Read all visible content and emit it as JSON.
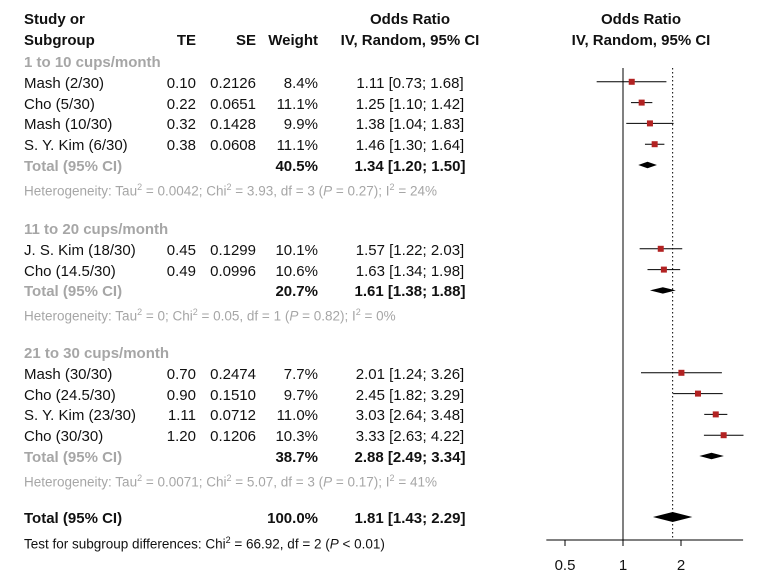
{
  "chart_data": {
    "type": "forest",
    "header": {
      "study_line1": "Study or",
      "study_line2": "Subgroup",
      "te": "TE",
      "se": "SE",
      "weight": "Weight",
      "or_title": "Odds Ratio",
      "or_method": "IV, Random, 95% CI",
      "plot_title": "Odds Ratio",
      "plot_method": "IV, Random, 95% CI"
    },
    "x_axis": {
      "scale": "log",
      "ticks": [
        0.5,
        1,
        2
      ],
      "tick_labels": [
        "0.5",
        "1",
        "2"
      ],
      "range": [
        0.4,
        4.2
      ],
      "reference": 1,
      "dotted_reference": 1.81
    },
    "subgroups": [
      {
        "name": "1 to 10 cups/month",
        "studies": [
          {
            "study": "Mash (2/30)",
            "te": "0.10",
            "se": "0.2126",
            "weight": "8.4%",
            "ci_text": "1.11 [0.73; 1.68]",
            "or": 1.11,
            "lo": 0.73,
            "hi": 1.68
          },
          {
            "study": "Cho (5/30)",
            "te": "0.22",
            "se": "0.0651",
            "weight": "11.1%",
            "ci_text": "1.25 [1.10; 1.42]",
            "or": 1.25,
            "lo": 1.1,
            "hi": 1.42
          },
          {
            "study": "Mash (10/30)",
            "te": "0.32",
            "se": "0.1428",
            "weight": "9.9%",
            "ci_text": "1.38 [1.04; 1.83]",
            "or": 1.38,
            "lo": 1.04,
            "hi": 1.83
          },
          {
            "study": "S. Y. Kim (6/30)",
            "te": "0.38",
            "se": "0.0608",
            "weight": "11.1%",
            "ci_text": "1.46 [1.30; 1.64]",
            "or": 1.46,
            "lo": 1.3,
            "hi": 1.64
          }
        ],
        "total": {
          "label": "Total (95% CI)",
          "weight": "40.5%",
          "ci_text": "1.34 [1.20; 1.50]",
          "or": 1.34,
          "lo": 1.2,
          "hi": 1.5
        },
        "het": {
          "tau2": "0.0042",
          "chi2": "3.93",
          "df": "3",
          "p": "0.27",
          "i2": "24%"
        }
      },
      {
        "name": "11 to 20 cups/month",
        "studies": [
          {
            "study": "J. S. Kim (18/30)",
            "te": "0.45",
            "se": "0.1299",
            "weight": "10.1%",
            "ci_text": "1.57 [1.22; 2.03]",
            "or": 1.57,
            "lo": 1.22,
            "hi": 2.03
          },
          {
            "study": "Cho (14.5/30)",
            "te": "0.49",
            "se": "0.0996",
            "weight": "10.6%",
            "ci_text": "1.63 [1.34; 1.98]",
            "or": 1.63,
            "lo": 1.34,
            "hi": 1.98
          }
        ],
        "total": {
          "label": "Total (95% CI)",
          "weight": "20.7%",
          "ci_text": "1.61 [1.38; 1.88]",
          "or": 1.61,
          "lo": 1.38,
          "hi": 1.88
        },
        "het": {
          "tau2": "0",
          "chi2": "0.05",
          "df": "1",
          "p": "0.82",
          "i2": "0%"
        }
      },
      {
        "name": "21 to 30 cups/month",
        "studies": [
          {
            "study": "Mash (30/30)",
            "te": "0.70",
            "se": "0.2474",
            "weight": "7.7%",
            "ci_text": "2.01 [1.24; 3.26]",
            "or": 2.01,
            "lo": 1.24,
            "hi": 3.26
          },
          {
            "study": "Cho (24.5/30)",
            "te": "0.90",
            "se": "0.1510",
            "weight": "9.7%",
            "ci_text": "2.45 [1.82; 3.29]",
            "or": 2.45,
            "lo": 1.82,
            "hi": 3.29
          },
          {
            "study": "S. Y. Kim (23/30)",
            "te": "1.11",
            "se": "0.0712",
            "weight": "11.0%",
            "ci_text": "3.03 [2.64; 3.48]",
            "or": 3.03,
            "lo": 2.64,
            "hi": 3.48
          },
          {
            "study": "Cho (30/30)",
            "te": "1.20",
            "se": "0.1206",
            "weight": "10.3%",
            "ci_text": "3.33 [2.63; 4.22]",
            "or": 3.33,
            "lo": 2.63,
            "hi": 4.22
          }
        ],
        "total": {
          "label": "Total (95% CI)",
          "weight": "38.7%",
          "ci_text": "2.88 [2.49; 3.34]",
          "or": 2.88,
          "lo": 2.49,
          "hi": 3.34
        },
        "het": {
          "tau2": "0.0071",
          "chi2": "5.07",
          "df": "3",
          "p": "0.17",
          "i2": "41%"
        }
      }
    ],
    "overall": {
      "label": "Total (95% CI)",
      "weight": "100.0%",
      "ci_text": "1.81 [1.43; 2.29]",
      "or": 1.81,
      "lo": 1.43,
      "hi": 2.29
    },
    "test_subgroup": {
      "prefix": "Test for subgroup differences: Chi",
      "chi2": "66.92",
      "df": "2",
      "p": "< 0.01"
    },
    "colors": {
      "square": "#b22222",
      "diamond": "#000000",
      "line": "#000000",
      "grey_text": "#a6a6a6"
    }
  }
}
